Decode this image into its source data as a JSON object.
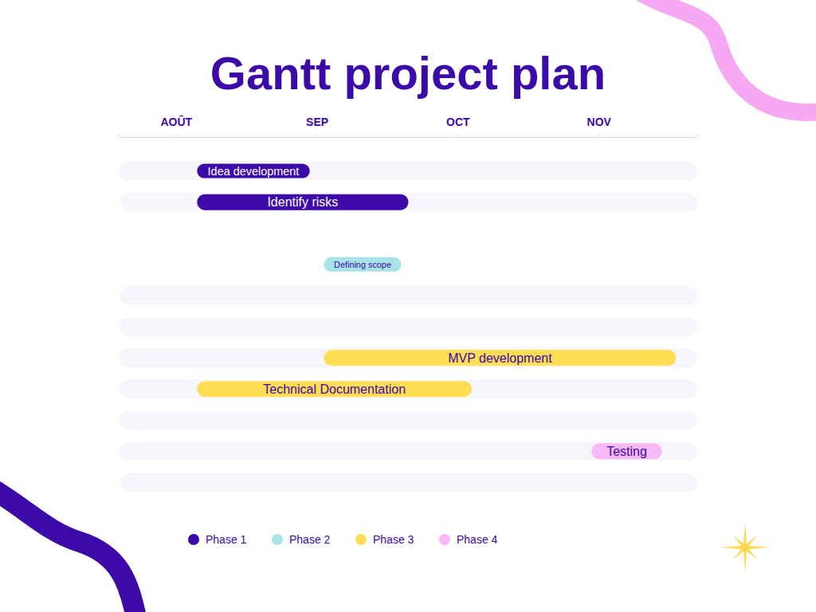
{
  "chart_data": {
    "type": "gantt",
    "title": "Gantt project plan",
    "orientation": "horizontal",
    "categories": [
      "Idea development",
      "Identify risks",
      null,
      "Defining scope",
      null,
      null,
      "MVP development",
      "Technical Documentation",
      null,
      "Testing",
      null
    ],
    "series": [
      {
        "name": "Phase 1",
        "color": "#3b0aa8",
        "start": [
          0.15,
          0.15,
          null,
          null,
          null,
          null,
          null,
          null,
          null,
          null,
          null
        ],
        "end": [
          0.95,
          1.65,
          null,
          null,
          null,
          null,
          null,
          null,
          null,
          null,
          null
        ]
      },
      {
        "name": "Phase 2",
        "color": "#a8e3ea",
        "start": [
          null,
          null,
          null,
          1.05,
          null,
          null,
          null,
          null,
          null,
          null,
          null
        ],
        "end": [
          null,
          null,
          null,
          1.6,
          null,
          null,
          null,
          null,
          null,
          null,
          null
        ]
      },
      {
        "name": "Phase 3",
        "color": "#ffdd55",
        "start": [
          null,
          null,
          null,
          null,
          null,
          null,
          1.05,
          0.15,
          null,
          null,
          null
        ],
        "end": [
          null,
          null,
          null,
          null,
          null,
          null,
          3.55,
          2.1,
          null,
          null,
          null
        ]
      },
      {
        "name": "Phase 4",
        "color": "#f7b8f5",
        "start": [
          null,
          null,
          null,
          null,
          null,
          null,
          null,
          null,
          null,
          2.95,
          null
        ],
        "end": [
          null,
          null,
          null,
          null,
          null,
          null,
          null,
          null,
          null,
          3.45,
          null
        ]
      }
    ],
    "xlim": [
      -0.4,
      3.7
    ],
    "xticks": [
      {
        "value": 0,
        "label": "AOÛT"
      },
      {
        "value": 1,
        "label": "SEP"
      },
      {
        "value": 2,
        "label": "OCT"
      },
      {
        "value": 3,
        "label": "NOV"
      }
    ],
    "tick_labels": "x",
    "legend": "bottom"
  }
}
